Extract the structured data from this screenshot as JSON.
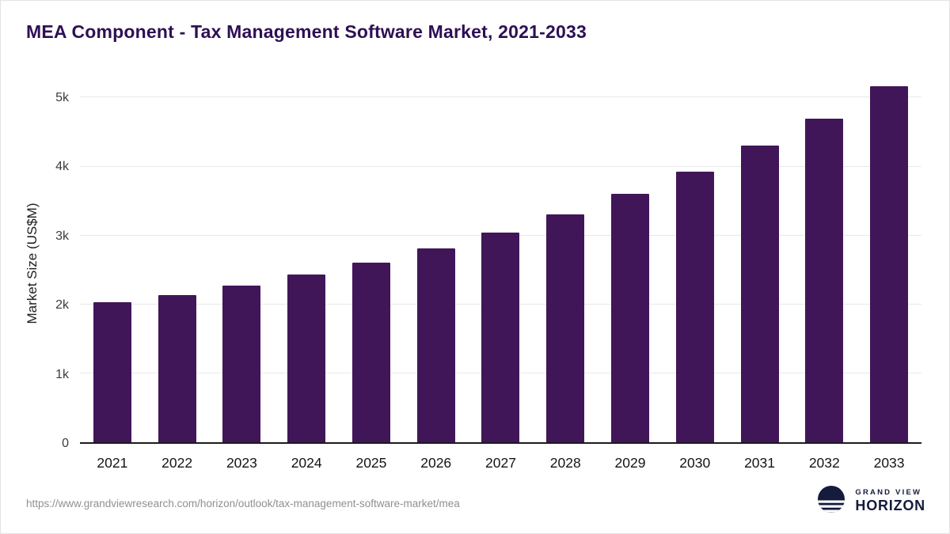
{
  "page": {
    "title": "MEA Component - Tax Management Software Market, 2021-2033"
  },
  "chart_data": {
    "type": "bar",
    "title": "MEA Component - Tax Management Software Market, 2021-2033",
    "categories": [
      "2021",
      "2022",
      "2023",
      "2024",
      "2025",
      "2026",
      "2027",
      "2028",
      "2029",
      "2030",
      "2031",
      "2032",
      "2033"
    ],
    "values": [
      2030,
      2130,
      2270,
      2430,
      2610,
      2810,
      3040,
      3310,
      3600,
      3930,
      4300,
      4700,
      5170
    ],
    "xlabel": "",
    "ylabel": "Market Size (US$M)",
    "ylim": [
      0,
      5200
    ],
    "yticks": [
      0,
      1000,
      2000,
      3000,
      4000,
      5000
    ],
    "ytick_labels": [
      "0",
      "1k",
      "2k",
      "3k",
      "4k",
      "5k"
    ],
    "bar_color": "#411659",
    "grid": true,
    "legend": false
  },
  "footer": {
    "source_url": "https://www.grandviewresearch.com/horizon/outlook/tax-management-software-market/mea",
    "logo_line1": "GRAND VIEW",
    "logo_line2": "HORIZON"
  }
}
